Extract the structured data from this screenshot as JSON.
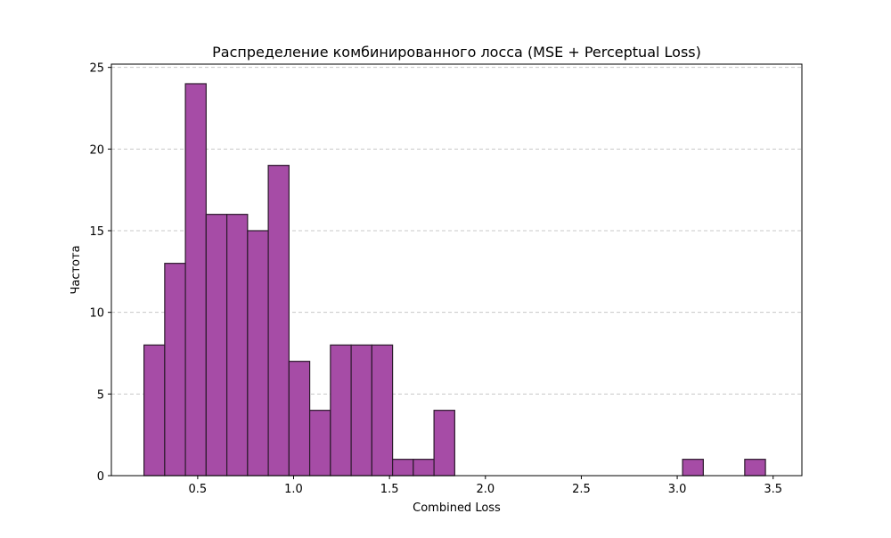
{
  "chart_data": {
    "type": "bar",
    "title": "Распределение комбинированного лосса (MSE + Perceptual Loss)",
    "xlabel": "Combined Loss",
    "ylabel": "Частота",
    "xlim": [
      0.05,
      3.65
    ],
    "ylim": [
      0,
      25.2
    ],
    "xticks": [
      0.5,
      1.0,
      1.5,
      2.0,
      2.5,
      3.0,
      3.5
    ],
    "xtick_labels": [
      "0.5",
      "1.0",
      "1.5",
      "2.0",
      "2.5",
      "3.0",
      "3.5"
    ],
    "yticks": [
      0,
      5,
      10,
      15,
      20,
      25
    ],
    "ytick_labels": [
      "0",
      "5",
      "10",
      "15",
      "20",
      "25"
    ],
    "grid": {
      "axis": "y",
      "style": "dashed"
    },
    "bin_edges": [
      0.22,
      0.328,
      0.436,
      0.544,
      0.652,
      0.76,
      0.868,
      0.976,
      1.084,
      1.192,
      1.3,
      1.408,
      1.516,
      1.624,
      1.732,
      1.84,
      1.948,
      2.056,
      2.164,
      2.272,
      2.38,
      2.488,
      2.596,
      2.704,
      2.812,
      2.92,
      3.028,
      3.136,
      3.244,
      3.352,
      3.46
    ],
    "counts": [
      8,
      13,
      24,
      16,
      16,
      15,
      19,
      7,
      4,
      8,
      8,
      8,
      1,
      1,
      4,
      0,
      0,
      0,
      0,
      0,
      0,
      0,
      0,
      0,
      0,
      0,
      1,
      0,
      0,
      1
    ]
  },
  "colors": {
    "bar_fill": "#a64ca6",
    "bar_edge": "#2b1a2b",
    "grid": "#c8c8c8",
    "axes": "#000000",
    "background": "#ffffff"
  }
}
